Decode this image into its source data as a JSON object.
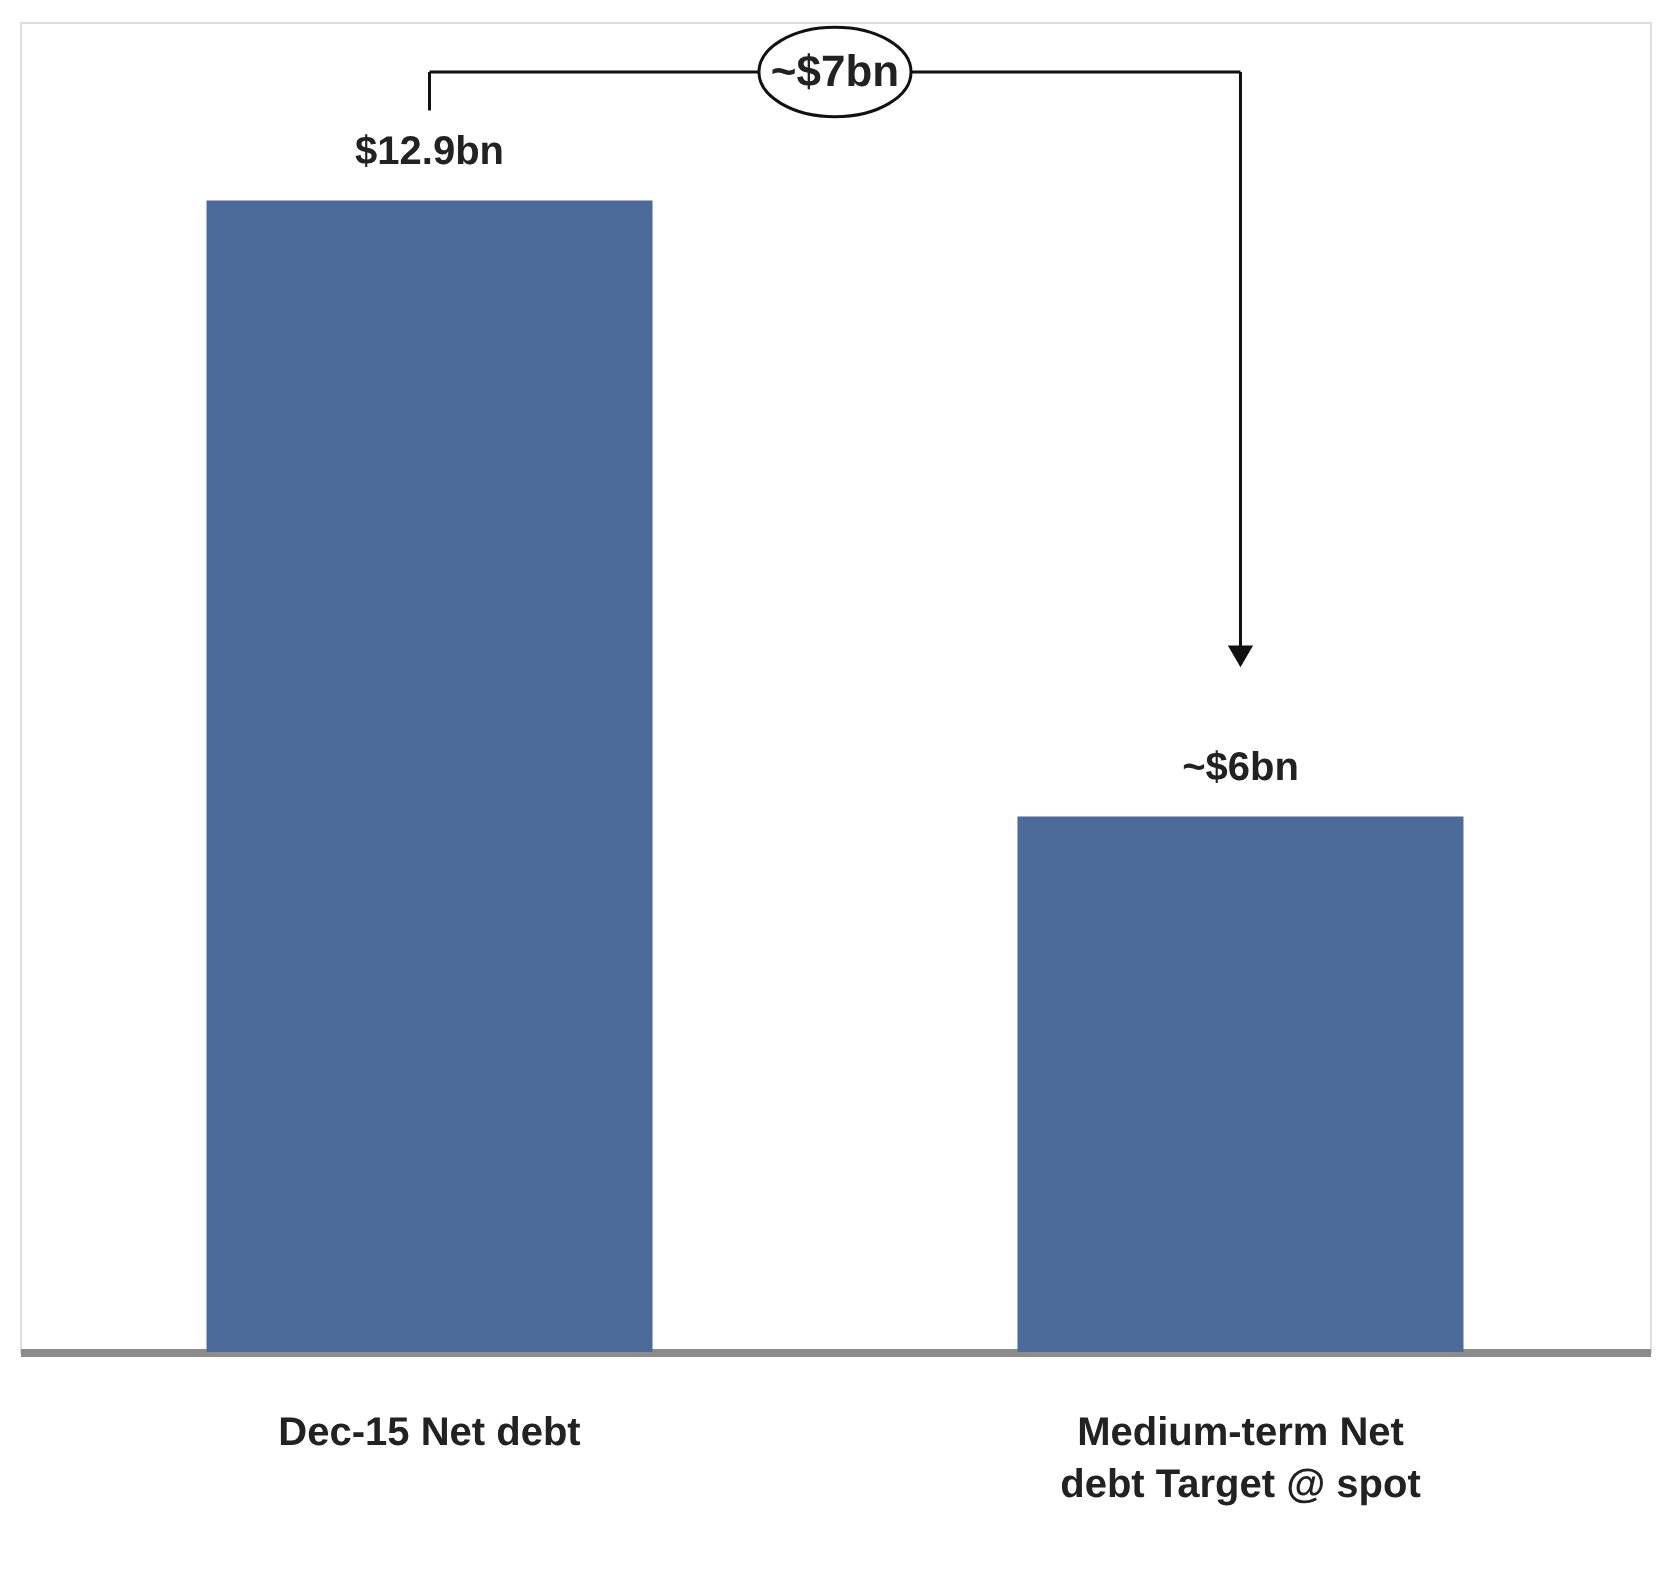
{
  "chart_data": {
    "type": "bar",
    "categories": [
      "Dec-15 Net debt",
      "Medium-term Net debt Target @ spot"
    ],
    "values": [
      12.9,
      6
    ],
    "value_labels": [
      "$12.9bn",
      "~$6bn"
    ],
    "color": "#4c6b9a",
    "annotations": [
      "~$7bn"
    ],
    "tick_labels": "x",
    "grid": false
  }
}
